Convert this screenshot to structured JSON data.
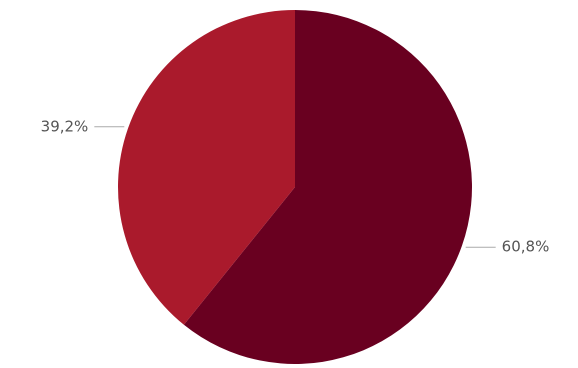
{
  "chart_data": {
    "type": "pie",
    "values": [
      60.8,
      39.2
    ],
    "value_labels": [
      "60,8%",
      "39,2%"
    ],
    "colors": [
      "#690020",
      "#aa1a2c"
    ]
  }
}
